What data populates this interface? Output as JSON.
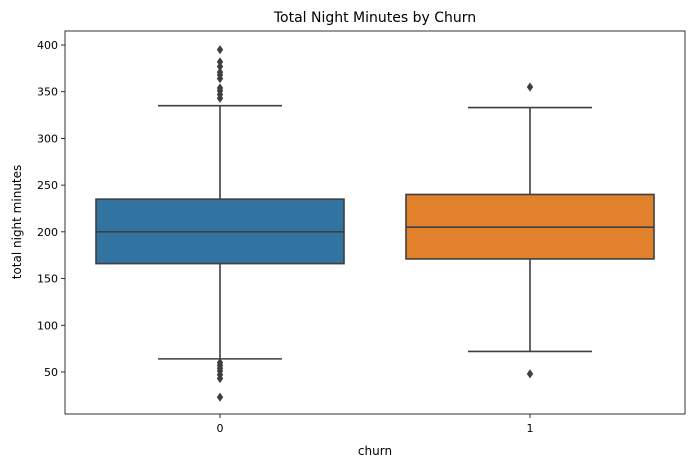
{
  "chart_data": {
    "type": "box",
    "title": "Total Night Minutes by Churn",
    "xlabel": "churn",
    "ylabel": "total night minutes",
    "categories": [
      "0",
      "1"
    ],
    "ylim": [
      5,
      415
    ],
    "yticks": [
      50,
      100,
      150,
      200,
      250,
      300,
      350,
      400
    ],
    "grid": false,
    "boxes": [
      {
        "category": "0",
        "color": "#3274a1",
        "whisker_low": 64,
        "q1": 166,
        "median": 200,
        "q3": 235,
        "whisker_high": 335,
        "outliers": [
          23,
          43,
          47,
          51,
          54,
          57,
          60,
          343,
          347,
          351,
          354,
          364,
          368,
          371,
          377,
          382,
          395
        ]
      },
      {
        "category": "1",
        "color": "#e1812c",
        "whisker_low": 72,
        "q1": 171,
        "median": 205,
        "q3": 240,
        "whisker_high": 333,
        "outliers": [
          48,
          355
        ]
      }
    ]
  }
}
